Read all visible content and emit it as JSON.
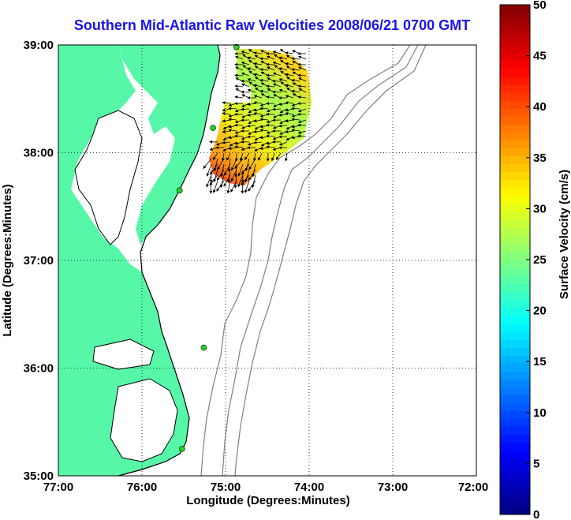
{
  "title": "Southern Mid-Atlantic Raw Velocities 2008/06/21 0700 GMT",
  "axes": {
    "xlabel": "Longitude (Degrees:Minutes)",
    "ylabel": "Latitude (Degrees:Minutes)",
    "xticks": [
      "77:00",
      "76:00",
      "75:00",
      "74:00",
      "73:00",
      "72:00"
    ],
    "yticks": [
      "39:00",
      "38:00",
      "37:00",
      "36:00",
      "35:00"
    ],
    "grid": "dotted"
  },
  "colorbar": {
    "label": "Surface Velocity (cm/s)",
    "ticks": [
      "50",
      "45",
      "40",
      "35",
      "30",
      "25",
      "20",
      "15",
      "10",
      "5",
      "0"
    ],
    "range": [
      0,
      50
    ],
    "colormap": "jet"
  },
  "colors": {
    "land": "#57f7a8",
    "coastline": "#000000",
    "bathymetry": "#808080",
    "station": "#22d322",
    "title": "#1a14e6"
  },
  "chart_data": {
    "type": "map",
    "xlim": [
      -77,
      -72
    ],
    "ylim": [
      35,
      39
    ],
    "stations": [
      {
        "lon": -74.87,
        "lat": 38.98
      },
      {
        "lon": -75.15,
        "lat": 38.23
      },
      {
        "lon": -75.55,
        "lat": 37.65
      },
      {
        "lon": -75.26,
        "lat": 36.19
      },
      {
        "lon": -75.52,
        "lat": 35.25
      }
    ]
  }
}
